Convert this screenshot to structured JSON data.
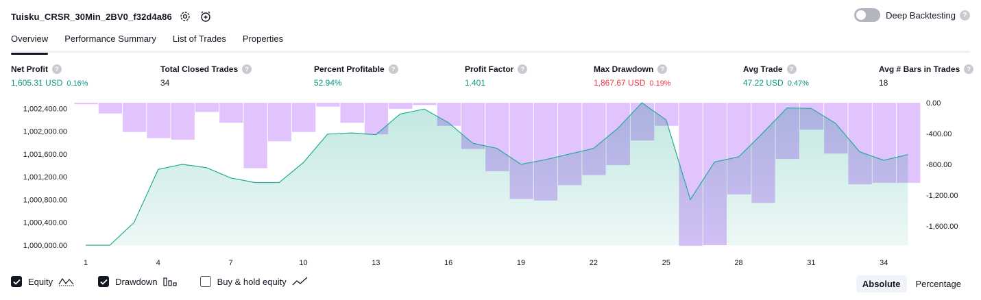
{
  "header": {
    "strategy_name": "Tuisku_CRSR_30Min_2BV0_f32d4a86",
    "settings_icon": "gear-icon",
    "replay_icon": "add-alert-icon"
  },
  "deep_backtesting": {
    "label": "Deep Backtesting",
    "enabled": false
  },
  "tabs": [
    {
      "label": "Overview",
      "active": true
    },
    {
      "label": "Performance Summary",
      "active": false
    },
    {
      "label": "List of Trades",
      "active": false
    },
    {
      "label": "Properties",
      "active": false
    }
  ],
  "metrics": {
    "net_profit": {
      "label": "Net Profit",
      "value": "1,605.31 USD",
      "pct": "0.16%"
    },
    "total_closed_trades": {
      "label": "Total Closed Trades",
      "value": "34"
    },
    "percent_profitable": {
      "label": "Percent Profitable",
      "value": "52.94%"
    },
    "profit_factor": {
      "label": "Profit Factor",
      "value": "1.401"
    },
    "max_drawdown": {
      "label": "Max Drawdown",
      "value": "1,867.67 USD",
      "pct": "0.19%"
    },
    "avg_trade": {
      "label": "Avg Trade",
      "value": "47.22 USD",
      "pct": "0.47%"
    },
    "avg_bars": {
      "label": "Avg # Bars in Trades",
      "value": "18"
    }
  },
  "chart_data": {
    "type": "area",
    "x_ticks": [
      "1",
      "4",
      "7",
      "10",
      "13",
      "16",
      "19",
      "22",
      "25",
      "28",
      "31",
      "34"
    ],
    "left_axis_ticks": [
      "1,002,400.00",
      "1,002,000.00",
      "1,001,600.00",
      "1,001,200.00",
      "1,000,800.00",
      "1,000,400.00",
      "1,000,000.00"
    ],
    "right_axis_ticks": [
      "0.00",
      "-400.00",
      "-800.00",
      "-1,200.00",
      "-1,600.00"
    ],
    "left_range": [
      1000000,
      1002500
    ],
    "right_range": [
      -1850,
      0
    ],
    "equity": {
      "name": "Equity",
      "x": [
        1,
        2,
        3,
        4,
        5,
        6,
        7,
        8,
        9,
        10,
        11,
        12,
        13,
        14,
        15,
        16,
        17,
        18,
        19,
        20,
        21,
        22,
        23,
        24,
        25,
        26,
        27,
        28,
        29,
        30,
        31,
        32,
        33,
        34,
        35
      ],
      "values": [
        1000000,
        1000000,
        1000400,
        1001330,
        1001420,
        1001360,
        1001180,
        1001100,
        1001100,
        1001450,
        1001950,
        1001970,
        1001940,
        1002300,
        1002390,
        1002150,
        1001790,
        1001700,
        1001420,
        1001500,
        1001600,
        1001700,
        1002050,
        1002500,
        1002200,
        1000800,
        1001460,
        1001550,
        1001970,
        1002410,
        1002400,
        1002140,
        1001640,
        1001490,
        1001590
      ]
    },
    "drawdown": {
      "name": "Drawdown",
      "values": [
        -20,
        -140,
        -380,
        -460,
        -480,
        -120,
        -260,
        -850,
        -500,
        -380,
        -50,
        -260,
        -410,
        -80,
        -30,
        -300,
        -600,
        -890,
        -1250,
        -1270,
        -1070,
        -940,
        -810,
        -490,
        -300,
        -1860,
        -1850,
        -1190,
        -1300,
        -730,
        -350,
        -660,
        -1060,
        -1040,
        -1040
      ]
    },
    "colors": {
      "equity_line": "#22ab94",
      "equity_fill": "#22ab94",
      "drawdown_fill": "#e1c4fd",
      "overlap": "#b9b6e6"
    }
  },
  "legend": [
    {
      "label": "Equity",
      "checked": true,
      "icon": "wave-line-icon"
    },
    {
      "label": "Drawdown",
      "checked": true,
      "icon": "bar-chart-icon"
    },
    {
      "label": "Buy & hold equity",
      "checked": false,
      "icon": "trend-line-icon"
    }
  ],
  "modes": [
    {
      "label": "Absolute",
      "active": true
    },
    {
      "label": "Percentage",
      "active": false
    }
  ]
}
